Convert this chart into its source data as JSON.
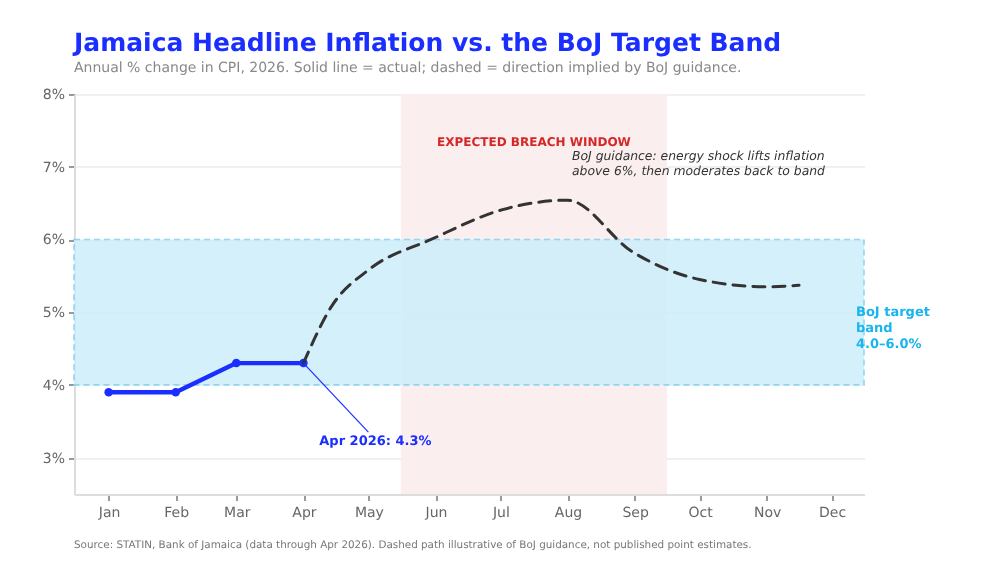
{
  "chart_data": {
    "type": "line",
    "title": "Jamaica Headline Inflation vs. the BoJ Target Band",
    "subtitle": "Annual % change in CPI, 2026.  Solid line = actual; dashed = direction implied by BoJ guidance.",
    "x": [
      "2026-01-01",
      "2026-02-01",
      "2026-03-01",
      "2026-04-01"
    ],
    "series": [
      {
        "color": "#1a2fff",
        "values": [
          3.9,
          3.9,
          4.3,
          4.3
        ],
        "marker": "circle",
        "line_style": "solid"
      },
      {
        "type": "line",
        "color": "#333333",
        "x": [
          "2026-04-01",
          "2026-04-14",
          "2026-05-01",
          "2026-05-30",
          "2026-07-02",
          "2026-08-01",
          "2026-08-31",
          "2026-10-01",
          "2026-11-01",
          "2026-11-16"
        ],
        "values": [
          4.3,
          5.08,
          5.58,
          6.0,
          6.41,
          6.54,
          5.83,
          5.45,
          5.35,
          5.37
        ],
        "marker": "none",
        "line_style": "dashed"
      }
    ],
    "xlim": [
      "2025-12-16",
      "2026-12-16"
    ],
    "xticks": [
      {
        "value": "2026-01-01",
        "label": "Jan"
      },
      {
        "value": "2026-02-01",
        "label": "Feb"
      },
      {
        "value": "2026-03-01",
        "label": "Mar"
      },
      {
        "value": "2026-04-01",
        "label": "Apr"
      },
      {
        "value": "2026-05-01",
        "label": "May"
      },
      {
        "value": "2026-06-01",
        "label": "Jun"
      },
      {
        "value": "2026-07-01",
        "label": "Jul"
      },
      {
        "value": "2026-08-01",
        "label": "Aug"
      },
      {
        "value": "2026-09-01",
        "label": "Sep"
      },
      {
        "value": "2026-10-01",
        "label": "Oct"
      },
      {
        "value": "2026-11-01",
        "label": "Nov"
      },
      {
        "value": "2026-12-01",
        "label": "Dec"
      }
    ],
    "ylim": [
      2.5,
      8
    ],
    "yticks": [
      {
        "value": 3,
        "label": "3%"
      },
      {
        "value": 4,
        "label": "4%"
      },
      {
        "value": 5,
        "label": "5%"
      },
      {
        "value": 6,
        "label": "6%"
      },
      {
        "value": 7,
        "label": "7%"
      },
      {
        "value": 8,
        "label": "8%"
      }
    ],
    "bands": [
      {
        "axis": "x",
        "from": "2026-05-16",
        "to": "2026-09-16",
        "label": "EXPECTED BREACH WINDOW",
        "color": "#f9ecec"
      },
      {
        "axis": "y",
        "from": 4,
        "to": 6,
        "label": "BoJ target band 4.0–6.0%",
        "color": "#cdeefa"
      }
    ],
    "annotations": [
      {
        "text": "Apr 2026: 4.3%",
        "x": "2026-04-01",
        "y": 4.3
      },
      "BoJ guidance: energy shock lifts inflation above 6%, then moderates back to band",
      "Source: STATIN, Bank of Jamaica (data through Apr 2026). Dashed path illustrative of BoJ guidance, not published point estimates."
    ],
    "grid": "y"
  }
}
